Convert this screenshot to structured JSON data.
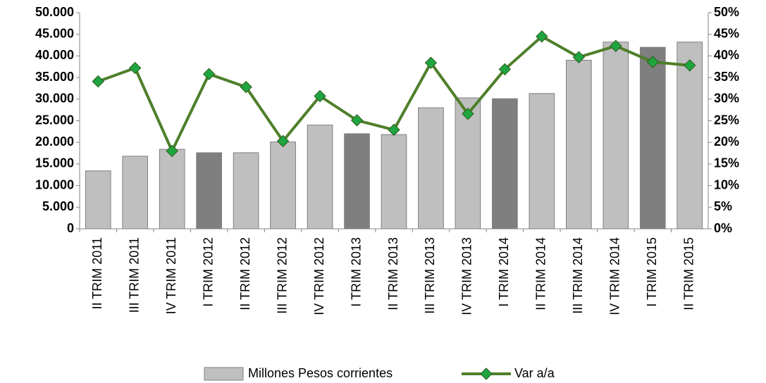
{
  "chart_data": {
    "type": "bar",
    "categories": [
      "II TRIM 2011",
      "III TRIM 2011",
      "IV TRIM 2011",
      "I TRIM 2012",
      "II TRIM 2012",
      "III TRIM 2012",
      "IV TRIM 2012",
      "I TRIM 2013",
      "II TRIM 2013",
      "III TRIM 2013",
      "IV TRIM 2013",
      "I TRIM 2014",
      "II TRIM 2014",
      "III TRIM 2014",
      "IV TRIM 2014",
      "I TRIM 2015",
      "II TRIM 2015"
    ],
    "series": [
      {
        "name": "Millones Pesos corrientes",
        "type": "bar",
        "color": "#bfbfbf",
        "colors": [
          "#bfbfbf",
          "#bfbfbf",
          "#bfbfbf",
          "#7f7f7f",
          "#bfbfbf",
          "#bfbfbf",
          "#bfbfbf",
          "#7f7f7f",
          "#bfbfbf",
          "#bfbfbf",
          "#bfbfbf",
          "#7f7f7f",
          "#bfbfbf",
          "#bfbfbf",
          "#bfbfbf",
          "#7f7f7f",
          "#bfbfbf"
        ],
        "values": [
          13400,
          16800,
          18400,
          17600,
          17600,
          20100,
          24000,
          22000,
          21800,
          28000,
          30300,
          30100,
          31300,
          39000,
          43200,
          42000,
          43200
        ]
      },
      {
        "name": "Var a/a",
        "type": "line",
        "axis": "y2",
        "color": "#4e7f2a",
        "marker_color": "#1fa540",
        "values": [
          34.1,
          37.2,
          18.0,
          35.8,
          32.8,
          20.3,
          30.7,
          25.1,
          22.9,
          38.4,
          26.6,
          36.9,
          44.5,
          39.7,
          42.3,
          38.6,
          37.8
        ]
      }
    ],
    "ylim": [
      0,
      50000
    ],
    "yticks": [
      {
        "value": 0,
        "label": "0"
      },
      {
        "value": 5000,
        "label": "5.000"
      },
      {
        "value": 10000,
        "label": "10.000"
      },
      {
        "value": 15000,
        "label": "15.000"
      },
      {
        "value": 20000,
        "label": "20.000"
      },
      {
        "value": 25000,
        "label": "25.000"
      },
      {
        "value": 30000,
        "label": "30.000"
      },
      {
        "value": 35000,
        "label": "35.000"
      },
      {
        "value": 40000,
        "label": "40.000"
      },
      {
        "value": 45000,
        "label": "45.000"
      },
      {
        "value": 50000,
        "label": "50.000"
      }
    ],
    "y2lim": [
      0,
      50
    ],
    "y2ticks": [
      {
        "value": 0,
        "label": "0%"
      },
      {
        "value": 5,
        "label": "5%"
      },
      {
        "value": 10,
        "label": "10%"
      },
      {
        "value": 15,
        "label": "15%"
      },
      {
        "value": 20,
        "label": "20%"
      },
      {
        "value": 25,
        "label": "25%"
      },
      {
        "value": 30,
        "label": "30%"
      },
      {
        "value": 35,
        "label": "35%"
      },
      {
        "value": 40,
        "label": "40%"
      },
      {
        "value": 45,
        "label": "45%"
      },
      {
        "value": 50,
        "label": "50%"
      }
    ],
    "grid": false,
    "legend": "bottom"
  }
}
